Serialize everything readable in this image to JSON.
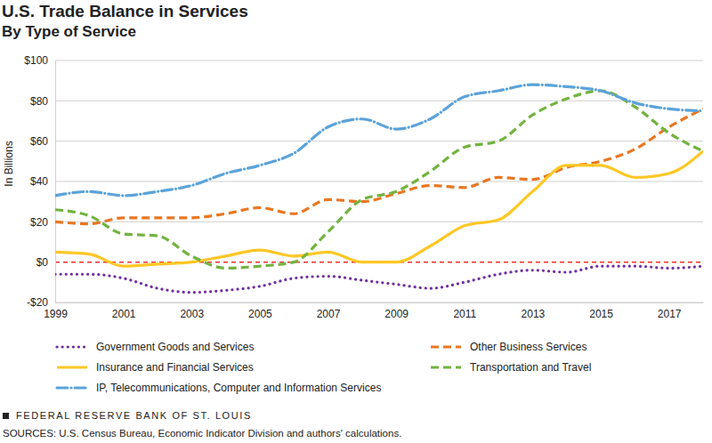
{
  "chart_data": {
    "type": "line",
    "title": "U.S. Trade Balance in Services",
    "subtitle": "By Type of Service",
    "y_label": "In Billions",
    "publisher": "FEDERAL RESERVE BANK OF ST. LOUIS",
    "sources": "SOURCES: U.S. Census Bureau, Economic Indicator Division and authors' calculations.",
    "x": [
      1999,
      2000,
      2001,
      2002,
      2003,
      2004,
      2005,
      2006,
      2007,
      2008,
      2009,
      2010,
      2011,
      2012,
      2013,
      2014,
      2015,
      2016,
      2017,
      2018
    ],
    "xlim": [
      1999,
      2018
    ],
    "xticks": [
      1999,
      2001,
      2003,
      2005,
      2007,
      2009,
      2011,
      2013,
      2015,
      2017
    ],
    "ylim": [
      -20,
      100
    ],
    "yticks": [
      {
        "value": -20,
        "label": "-$20"
      },
      {
        "value": 0,
        "label": "$0"
      },
      {
        "value": 20,
        "label": "$20"
      },
      {
        "value": 40,
        "label": "$40"
      },
      {
        "value": 60,
        "label": "$60"
      },
      {
        "value": 80,
        "label": "$80"
      },
      {
        "value": 100,
        "label": "$100"
      }
    ],
    "grid": true,
    "legend": "bottom",
    "series": [
      {
        "name": "Government Goods and Services",
        "color": "#7030a0",
        "line_style": "dotted",
        "values": [
          -6,
          -6,
          -8,
          -13,
          -15,
          -14,
          -12,
          -8,
          -7,
          -9,
          -11,
          -13,
          -10,
          -6,
          -4,
          -5,
          -2,
          -2,
          -3,
          -2
        ]
      },
      {
        "name": "Other Business Services",
        "color": "#e87722",
        "line_style": "dashed",
        "values": [
          20,
          19,
          22,
          22,
          22,
          24,
          27,
          24,
          31,
          30,
          34,
          38,
          37,
          42,
          41,
          47,
          50,
          56,
          67,
          76
        ]
      },
      {
        "name": "Insurance and Financial Services",
        "color": "#ffc726",
        "line_style": "solid",
        "values": [
          5,
          4,
          -2,
          -1,
          0,
          3,
          6,
          3,
          5,
          0,
          0,
          8,
          18,
          21,
          35,
          48,
          48,
          42,
          44,
          55
        ]
      },
      {
        "name": "Transportation and Travel",
        "color": "#72b33f",
        "line_style": "dashed",
        "values": [
          26,
          23,
          14,
          13,
          3,
          -3,
          -2,
          0,
          15,
          31,
          35,
          45,
          57,
          60,
          73,
          81,
          85,
          77,
          64,
          55
        ]
      },
      {
        "name": "IP, Telecommunications, Computer and Information Services",
        "color": "#5ba3d9",
        "line_style": "dashdot",
        "values": [
          33,
          35,
          33,
          35,
          38,
          44,
          48,
          54,
          67,
          71,
          66,
          71,
          82,
          85,
          88,
          87,
          85,
          79,
          76,
          75
        ]
      }
    ]
  }
}
